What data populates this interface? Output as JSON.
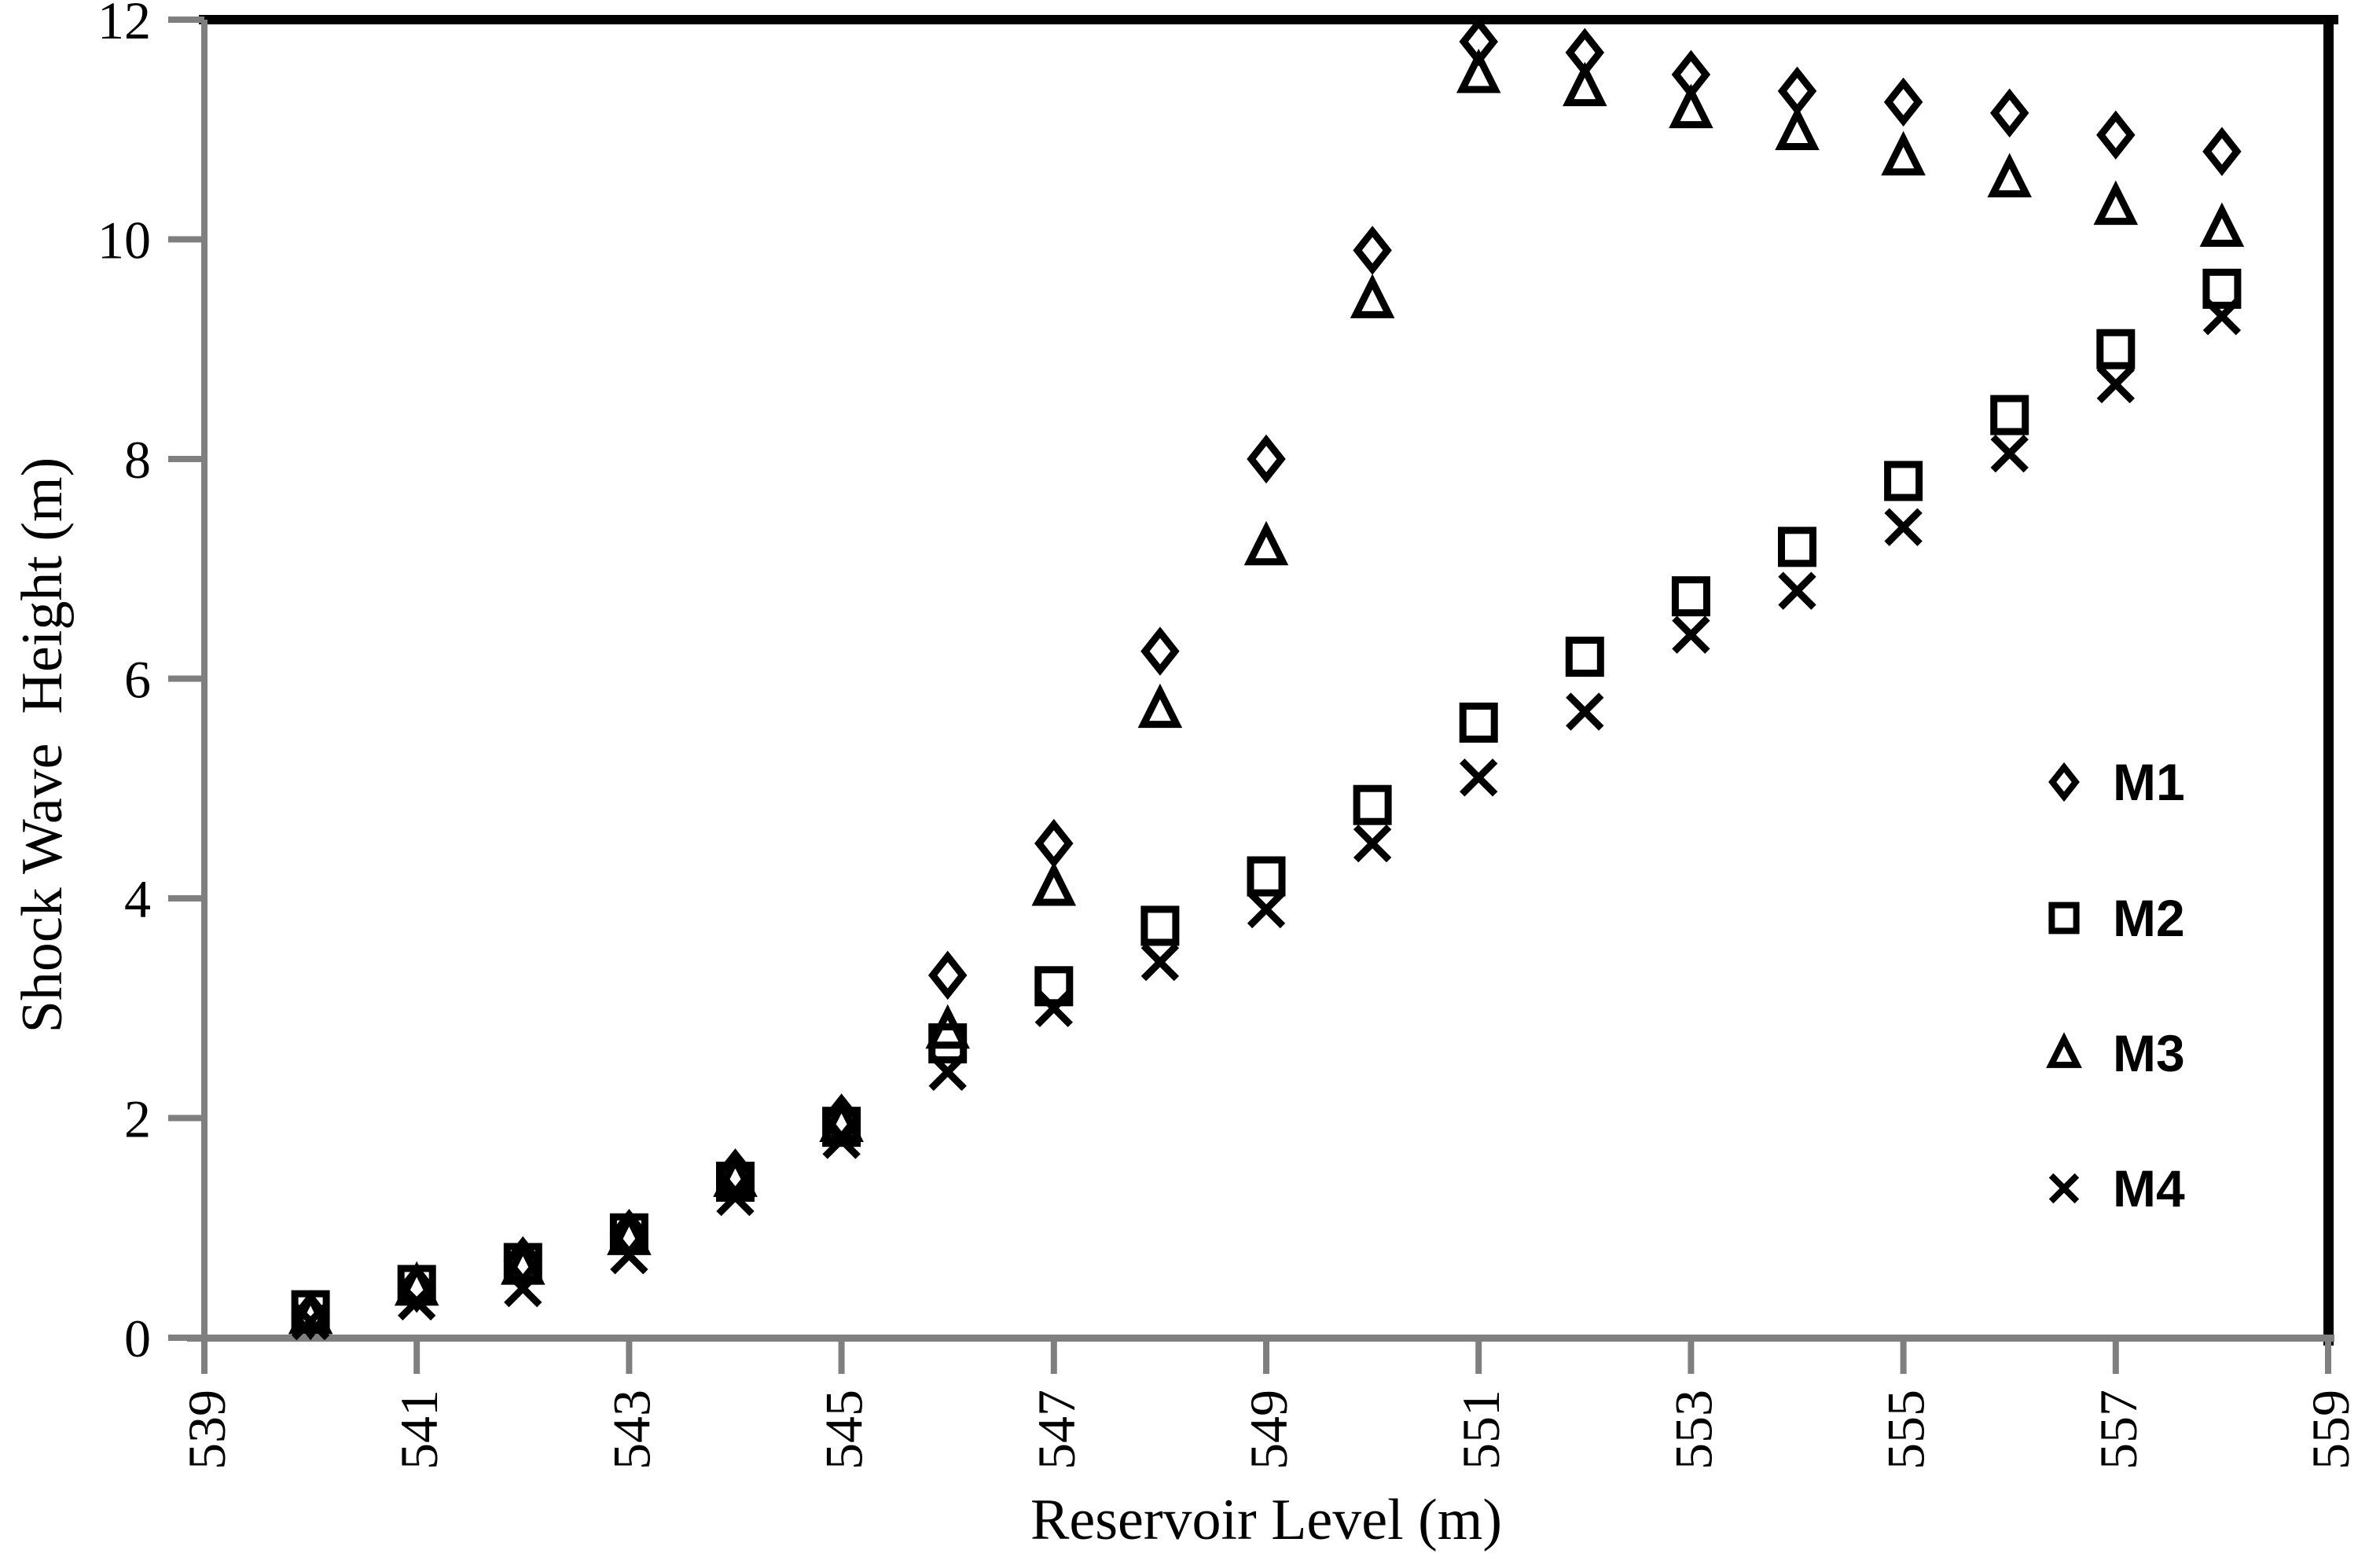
{
  "figure": {
    "background": "#ffffff",
    "border_color": "#000000",
    "axis_color": "#7f7f7f",
    "marker_color": "#000000",
    "text_color": "#000000"
  },
  "chart_data": {
    "type": "scatter",
    "title": "",
    "xlabel": "Reservoir Level (m)",
    "ylabel": "Shock Wave  Height (m)",
    "xlim": [
      539,
      559
    ],
    "ylim": [
      0,
      12
    ],
    "x_ticks": [
      539,
      541,
      543,
      545,
      547,
      549,
      551,
      553,
      555,
      557,
      559
    ],
    "y_ticks": [
      0,
      2,
      4,
      6,
      8,
      10,
      12
    ],
    "x_tick_rotation": -90,
    "grid": false,
    "legend_position": "inside-right",
    "x": [
      540,
      541,
      542,
      543,
      544,
      545,
      546,
      547,
      548,
      549,
      550,
      551,
      552,
      553,
      554,
      555,
      556,
      557,
      558
    ],
    "series": [
      {
        "name": "M1",
        "marker": "diamond",
        "values": [
          0.2,
          0.45,
          0.7,
          0.95,
          1.5,
          2.0,
          3.3,
          4.5,
          6.25,
          8.0,
          9.9,
          11.8,
          11.7,
          11.5,
          11.35,
          11.25,
          11.15,
          10.95,
          10.8
        ]
      },
      {
        "name": "M2",
        "marker": "square",
        "values": [
          0.25,
          0.48,
          0.68,
          0.95,
          1.42,
          1.92,
          2.68,
          3.2,
          3.75,
          4.2,
          4.85,
          5.6,
          6.2,
          6.75,
          7.2,
          7.8,
          8.4,
          9.0,
          9.55
        ]
      },
      {
        "name": "M3",
        "marker": "triangle",
        "values": [
          0.2,
          0.46,
          0.65,
          0.92,
          1.45,
          1.95,
          2.8,
          4.1,
          5.72,
          7.2,
          9.45,
          11.5,
          11.38,
          11.18,
          10.98,
          10.75,
          10.55,
          10.3,
          10.1
        ]
      },
      {
        "name": "M4",
        "marker": "x",
        "values": [
          0.15,
          0.33,
          0.45,
          0.75,
          1.28,
          1.8,
          2.42,
          3.0,
          3.42,
          3.9,
          4.5,
          5.1,
          5.7,
          6.4,
          6.8,
          7.38,
          8.05,
          8.68,
          9.3
        ]
      }
    ],
    "draw_order": [
      "M1",
      "M3",
      "M2",
      "M4"
    ],
    "legend_order": [
      "M1",
      "M2",
      "M3",
      "M4"
    ]
  }
}
